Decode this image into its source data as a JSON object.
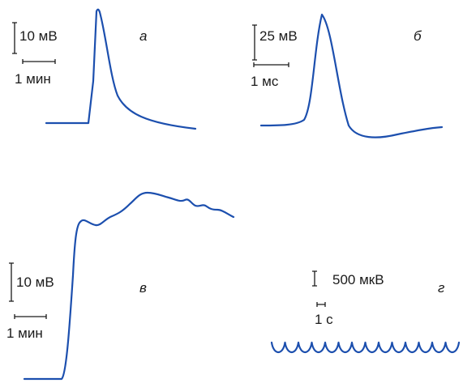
{
  "panels": {
    "a": {
      "letter": "а",
      "amplitude_scale": "10 мВ",
      "time_scale": "1 мин",
      "trace_description": "slow action potential"
    },
    "b": {
      "letter": "б",
      "amplitude_scale": "25 мВ",
      "time_scale": "1 мс",
      "trace_description": "fast action potential with afterhyperpolarization"
    },
    "v": {
      "letter": "в",
      "amplitude_scale": "10 мВ",
      "time_scale": "1 мин",
      "trace_description": "sustained depolarization plateau"
    },
    "g": {
      "letter": "г",
      "amplitude_scale": "500 мкВ",
      "time_scale": "1 с",
      "trace_description": "repetitive small oscillations"
    }
  },
  "colors": {
    "trace": "#1c4fae",
    "text": "#1a1a1a",
    "background": "#ffffff"
  }
}
